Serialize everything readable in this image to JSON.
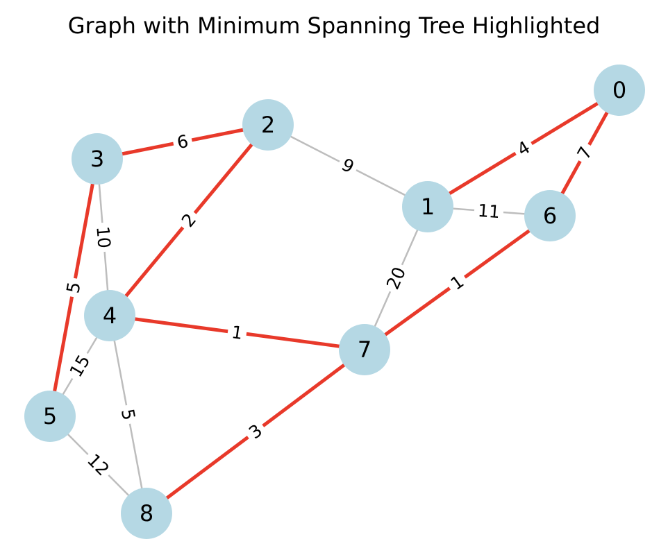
{
  "title": "Graph with Minimum Spanning Tree Highlighted",
  "colors": {
    "mst_edge": "#e8392a",
    "other_edge": "#bdbdbd",
    "node_fill": "#b5d8e4",
    "label_bg": "#ffffff"
  },
  "nodes": [
    {
      "id": "0"
    },
    {
      "id": "1"
    },
    {
      "id": "2"
    },
    {
      "id": "3"
    },
    {
      "id": "4"
    },
    {
      "id": "5"
    },
    {
      "id": "6"
    },
    {
      "id": "7"
    },
    {
      "id": "8"
    }
  ],
  "edges": [
    {
      "source": "0",
      "target": "1",
      "weight": "4",
      "mst": true
    },
    {
      "source": "0",
      "target": "6",
      "weight": "7",
      "mst": true
    },
    {
      "source": "1",
      "target": "2",
      "weight": "9",
      "mst": false
    },
    {
      "source": "1",
      "target": "6",
      "weight": "11",
      "mst": false
    },
    {
      "source": "1",
      "target": "7",
      "weight": "20",
      "mst": false
    },
    {
      "source": "2",
      "target": "3",
      "weight": "6",
      "mst": true
    },
    {
      "source": "2",
      "target": "4",
      "weight": "2",
      "mst": true
    },
    {
      "source": "3",
      "target": "4",
      "weight": "10",
      "mst": false
    },
    {
      "source": "3",
      "target": "5",
      "weight": "5",
      "mst": true
    },
    {
      "source": "4",
      "target": "5",
      "weight": "15",
      "mst": false
    },
    {
      "source": "4",
      "target": "7",
      "weight": "1",
      "mst": true
    },
    {
      "source": "4",
      "target": "8",
      "weight": "5",
      "mst": false
    },
    {
      "source": "5",
      "target": "8",
      "weight": "12",
      "mst": false
    },
    {
      "source": "6",
      "target": "7",
      "weight": "1",
      "mst": true
    },
    {
      "source": "7",
      "target": "8",
      "weight": "3",
      "mst": true
    }
  ]
}
